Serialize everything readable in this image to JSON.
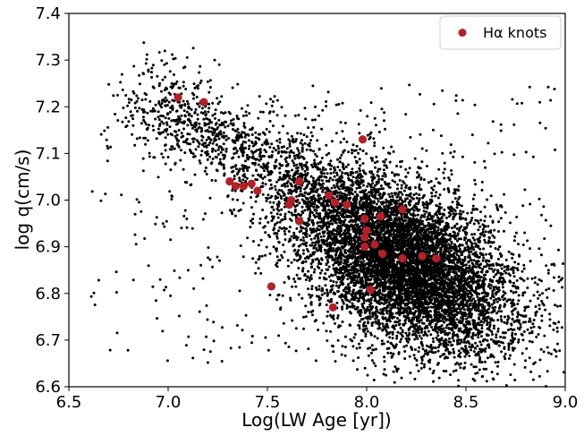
{
  "chart_data": {
    "type": "scatter",
    "xlabel": "Log(LW Age [yr])",
    "ylabel": "log q(cm/s)",
    "xlim": [
      6.5,
      9.0
    ],
    "ylim": [
      6.6,
      7.4
    ],
    "x_ticks": [
      "6.5",
      "7.0",
      "7.5",
      "8.0",
      "8.5",
      "9.0"
    ],
    "y_ticks": [
      "6.6",
      "6.7",
      "6.8",
      "6.9",
      "7.0",
      "7.1",
      "7.2",
      "7.3",
      "7.4"
    ],
    "legend": {
      "position": "upper right",
      "entries": [
        "Hα knots"
      ]
    },
    "colors": {
      "background_points": "#000000",
      "knots": "#b22028"
    },
    "background_population": {
      "description_in_legend": false,
      "approx_count": 9000,
      "bulk_center": [
        8.2,
        6.86
      ],
      "distribution": "dense cloud with upper-left tail"
    },
    "series": [
      {
        "name": "Hα knots",
        "color": "#b22028",
        "points": [
          [
            7.05,
            7.22
          ],
          [
            7.18,
            7.21
          ],
          [
            7.98,
            7.13
          ],
          [
            7.31,
            7.04
          ],
          [
            7.34,
            7.03
          ],
          [
            7.38,
            7.03
          ],
          [
            7.42,
            7.035
          ],
          [
            7.45,
            7.02
          ],
          [
            7.62,
            7.0
          ],
          [
            7.66,
            7.04
          ],
          [
            7.61,
            6.99
          ],
          [
            7.66,
            6.955
          ],
          [
            7.81,
            7.01
          ],
          [
            7.84,
            6.995
          ],
          [
            7.9,
            6.99
          ],
          [
            8.07,
            6.965
          ],
          [
            8.18,
            6.98
          ],
          [
            7.99,
            6.96
          ],
          [
            8.0,
            6.935
          ],
          [
            7.99,
            6.92
          ],
          [
            8.04,
            6.905
          ],
          [
            7.99,
            6.9
          ],
          [
            8.08,
            6.885
          ],
          [
            8.28,
            6.88
          ],
          [
            8.35,
            6.875
          ],
          [
            8.18,
            6.875
          ],
          [
            7.52,
            6.815
          ],
          [
            8.02,
            6.808
          ],
          [
            7.83,
            6.77
          ]
        ]
      }
    ]
  }
}
